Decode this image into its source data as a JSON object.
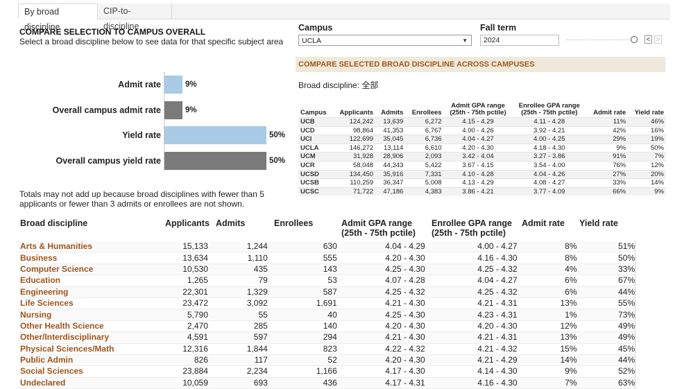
{
  "tabs": [
    {
      "label": "By broad discipline",
      "active": true
    },
    {
      "label": "CIP-to-discipline",
      "active": false
    }
  ],
  "left": {
    "title": "COMPARE SELECTION TO CAMPUS OVERALL",
    "subtitle": "Select a broad discipline below to see data for that specific subject area",
    "footnote": "Totals may not add up because broad disciplines with fewer than 5 applicants or fewer than 3 admits or enrollees are not shown."
  },
  "chart_data": {
    "type": "bar",
    "orientation": "horizontal",
    "categories": [
      "Admit rate",
      "Overall campus admit rate",
      "Yield rate",
      "Overall campus yield rate"
    ],
    "values": [
      9,
      9,
      50,
      50
    ],
    "value_labels": [
      "9%",
      "9%",
      "50%",
      "50%"
    ],
    "xlim": [
      0,
      50
    ],
    "colors": [
      "#a9cbe6",
      "#7a7a7a",
      "#a9cbe6",
      "#7a7a7a"
    ]
  },
  "filters": {
    "campus_label": "Campus",
    "campus_value": "UCLA",
    "term_label": "Fall term",
    "term_value": "2024",
    "prev_btn": "<",
    "next_btn": ">",
    "term_position": 1.0
  },
  "campus_compare": {
    "banner": "COMPARE SELECTED BROAD DISCIPLINE ACROSS CAMPUSES",
    "discipline_line": "Broad discipline: 全部",
    "headers": [
      "Campus",
      "Applicants",
      "Admits",
      "Enrollees",
      "Admit GPA range (25th - 75th pctile)",
      "Enrollee GPA range (25th - 75th pctile)",
      "Admit rate",
      "Yield rate"
    ],
    "header_admit_gpa_l1": "Admit GPA range",
    "header_admit_gpa_l2": "(25th - 75th pctile)",
    "header_enr_gpa_l1": "Enrollee GPA range",
    "header_enr_gpa_l2": "(25th - 75th pctile)",
    "rows": [
      [
        "UCB",
        "124,242",
        "13,639",
        "6,272",
        "4.15 - 4.29",
        "4.11 - 4.28",
        "11%",
        "46%"
      ],
      [
        "UCD",
        "98,864",
        "41,353",
        "6,767",
        "4.00 - 4.26",
        "3.92 - 4.21",
        "42%",
        "16%"
      ],
      [
        "UCI",
        "122,699",
        "35,045",
        "6,736",
        "4.04 - 4.27",
        "4.00 - 4.25",
        "29%",
        "19%"
      ],
      [
        "UCLA",
        "146,272",
        "13,114",
        "6,610",
        "4.20 - 4.30",
        "4.18 - 4.30",
        "9%",
        "50%"
      ],
      [
        "UCM",
        "31,928",
        "28,906",
        "2,093",
        "3.42 - 4.04",
        "3.27 - 3.86",
        "91%",
        "7%"
      ],
      [
        "UCR",
        "58,048",
        "44,343",
        "5,422",
        "3.67 - 4.15",
        "3.54 - 4.00",
        "76%",
        "12%"
      ],
      [
        "UCSD",
        "134,450",
        "35,916",
        "7,331",
        "4.10 - 4.28",
        "4.04 - 4.26",
        "27%",
        "20%"
      ],
      [
        "UCSB",
        "110,259",
        "36,347",
        "5,008",
        "4.13 - 4.29",
        "4.08 - 4.27",
        "33%",
        "14%"
      ],
      [
        "UCSC",
        "71,722",
        "47,186",
        "4,383",
        "3.86 - 4.21",
        "3.77 - 4.09",
        "66%",
        "9%"
      ]
    ]
  },
  "discipline_table": {
    "headers": {
      "name": "Broad discipline",
      "applicants": "Applicants",
      "admits": "Admits",
      "enrollees": "Enrollees",
      "admit_gpa_l1": "Admit GPA range",
      "admit_gpa_l2": "(25th - 75th pctile)",
      "enr_gpa_l1": "Enrollee GPA range",
      "enr_gpa_l2": "(25th - 75th pctile)",
      "admit_rate": "Admit rate",
      "yield_rate": "Yield rate"
    },
    "rows": [
      [
        "Arts & Humanities",
        "15,133",
        "1,244",
        "630",
        "4.04 - 4.29",
        "4.00 - 4.27",
        "8%",
        "51%"
      ],
      [
        "Business",
        "13,634",
        "1,110",
        "555",
        "4.20 - 4.30",
        "4.16 - 4.30",
        "8%",
        "50%"
      ],
      [
        "Computer Science",
        "10,530",
        "435",
        "143",
        "4.25 - 4.30",
        "4.25 - 4.32",
        "4%",
        "33%"
      ],
      [
        "Education",
        "1,265",
        "79",
        "53",
        "4.07 - 4.28",
        "4.04 - 4.27",
        "6%",
        "67%"
      ],
      [
        "Engineering",
        "22,301",
        "1,329",
        "587",
        "4.25 - 4.32",
        "4.25 - 4.32",
        "6%",
        "44%"
      ],
      [
        "Life Sciences",
        "23,472",
        "3,092",
        "1,691",
        "4.21 - 4.30",
        "4.21 - 4.31",
        "13%",
        "55%"
      ],
      [
        "Nursing",
        "5,790",
        "55",
        "40",
        "4.25 - 4.30",
        "4.23 - 4.31",
        "1%",
        "73%"
      ],
      [
        "Other Health Science",
        "2,470",
        "285",
        "140",
        "4.20 - 4.30",
        "4.20 - 4.30",
        "12%",
        "49%"
      ],
      [
        "Other/Interdisciplinary",
        "4,591",
        "597",
        "294",
        "4.21 - 4.30",
        "4.21 - 4.31",
        "13%",
        "49%"
      ],
      [
        "Physical Sciences/Math",
        "12,316",
        "1,844",
        "823",
        "4.22 - 4.32",
        "4.21 - 4.32",
        "15%",
        "45%"
      ],
      [
        "Public Admin",
        "826",
        "117",
        "52",
        "4.20 - 4.30",
        "4.21 - 4.29",
        "14%",
        "44%"
      ],
      [
        "Social Sciences",
        "23,884",
        "2,234",
        "1,166",
        "4.17 - 4.30",
        "4.14 - 4.30",
        "9%",
        "52%"
      ],
      [
        "Undeclared",
        "10,059",
        "693",
        "436",
        "4.17 - 4.31",
        "4.16 - 4.30",
        "7%",
        "63%"
      ]
    ]
  }
}
